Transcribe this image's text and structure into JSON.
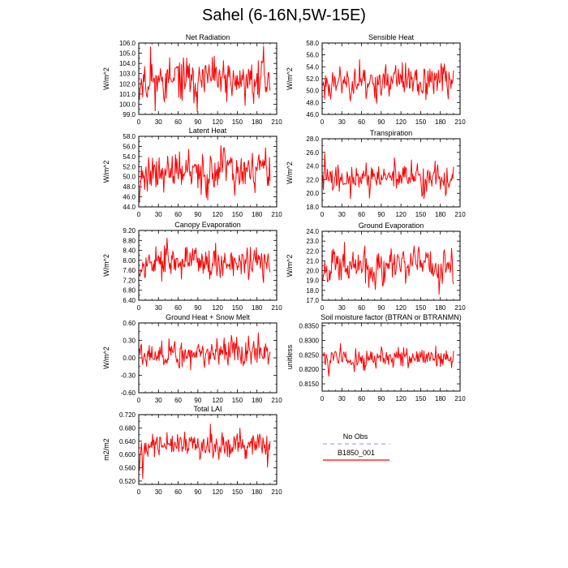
{
  "page": {
    "title": "Sahel (6-16N,5W-15E)"
  },
  "legend": [
    {
      "label": "No Obs",
      "color": "#a0a0ff",
      "dashed": true
    },
    {
      "label": "B1850_001",
      "color": "#ff0000",
      "dashed": false
    }
  ],
  "chart_data": [
    {
      "type": "line",
      "title": "Net Radiation",
      "ylabel": "W/m^2",
      "ylim": [
        99.0,
        106.0
      ],
      "yticks": [
        "99.0",
        "100.0",
        "101.0",
        "102.0",
        "103.0",
        "104.0",
        "105.0",
        "106.0"
      ],
      "xlim": [
        0,
        210
      ],
      "xticks": [
        "0",
        "30",
        "60",
        "90",
        "120",
        "150",
        "180",
        "210"
      ],
      "n": 200,
      "mean": 102.3,
      "amp": 1.4,
      "min": 99.3,
      "max": 105.7,
      "trend": 0.0,
      "seed": 11,
      "series": [
        {
          "name": "B1850_001",
          "color": "#ff0000"
        }
      ]
    },
    {
      "type": "line",
      "title": "Sensible Heat",
      "ylabel": "W/m^2",
      "ylim": [
        46.0,
        58.0
      ],
      "yticks": [
        "46.0",
        "48.0",
        "50.0",
        "52.0",
        "54.0",
        "56.0",
        "58.0"
      ],
      "xlim": [
        0,
        210
      ],
      "xticks": [
        "0",
        "30",
        "60",
        "90",
        "120",
        "150",
        "180",
        "210"
      ],
      "n": 200,
      "mean": 51.6,
      "amp": 2.0,
      "min": 46.3,
      "max": 56.5,
      "trend": 0.0,
      "seed": 23,
      "series": [
        {
          "name": "B1850_001",
          "color": "#ff0000"
        }
      ]
    },
    {
      "type": "line",
      "title": "Latent Heat",
      "ylabel": "W/m^2",
      "ylim": [
        44.0,
        58.0
      ],
      "yticks": [
        "44.0",
        "46.0",
        "48.0",
        "50.0",
        "52.0",
        "54.0",
        "56.0",
        "58.0"
      ],
      "xlim": [
        0,
        210
      ],
      "xticks": [
        "0",
        "30",
        "60",
        "90",
        "120",
        "150",
        "180",
        "210"
      ],
      "n": 200,
      "mean": 50.8,
      "amp": 2.8,
      "min": 44.8,
      "max": 57.9,
      "trend": 0.0,
      "seed": 37,
      "series": [
        {
          "name": "B1850_001",
          "color": "#ff0000"
        }
      ]
    },
    {
      "type": "line",
      "title": "Transpiration",
      "ylabel": "W/m^2",
      "ylim": [
        18.0,
        28.0
      ],
      "yticks": [
        "18.0",
        "20.0",
        "22.0",
        "24.0",
        "26.0",
        "28.0"
      ],
      "xlim": [
        0,
        210
      ],
      "xticks": [
        "0",
        "30",
        "60",
        "90",
        "120",
        "150",
        "180",
        "210"
      ],
      "n": 200,
      "mean": 22.2,
      "amp": 1.3,
      "min": 19.2,
      "max": 26.0,
      "trend": 0.0,
      "seed": 41,
      "series": [
        {
          "name": "B1850_001",
          "color": "#ff0000"
        }
      ]
    },
    {
      "type": "line",
      "title": "Canopy Evaporation",
      "ylabel": "W/m^2",
      "ylim": [
        6.4,
        9.2
      ],
      "yticks": [
        "6.40",
        "6.80",
        "7.20",
        "7.60",
        "8.00",
        "8.40",
        "8.80",
        "9.20"
      ],
      "xlim": [
        0,
        210
      ],
      "xticks": [
        "0",
        "30",
        "60",
        "90",
        "120",
        "150",
        "180",
        "210"
      ],
      "n": 200,
      "mean": 7.95,
      "amp": 0.45,
      "min": 6.7,
      "max": 9.0,
      "trend": 0.0,
      "seed": 53,
      "series": [
        {
          "name": "B1850_001",
          "color": "#ff0000"
        }
      ]
    },
    {
      "type": "line",
      "title": "Ground Evaporation",
      "ylabel": "W/m^2",
      "ylim": [
        17.0,
        24.0
      ],
      "yticks": [
        "17.0",
        "18.0",
        "19.0",
        "20.0",
        "21.0",
        "22.0",
        "23.0",
        "24.0"
      ],
      "xlim": [
        0,
        210
      ],
      "xticks": [
        "0",
        "30",
        "60",
        "90",
        "120",
        "150",
        "180",
        "210"
      ],
      "n": 200,
      "mean": 20.5,
      "amp": 1.2,
      "min": 17.6,
      "max": 23.8,
      "trend": 0.0,
      "seed": 67,
      "series": [
        {
          "name": "B1850_001",
          "color": "#ff0000"
        }
      ]
    },
    {
      "type": "line",
      "title": "Ground Heat + Snow Melt",
      "ylabel": "W/m^2",
      "ylim": [
        -0.6,
        0.6
      ],
      "yticks": [
        "-0.60",
        "-0.30",
        "0.00",
        "0.30",
        "0.60"
      ],
      "xlim": [
        0,
        210
      ],
      "xticks": [
        "0",
        "30",
        "60",
        "90",
        "120",
        "150",
        "180",
        "210"
      ],
      "n": 200,
      "mean": 0.08,
      "amp": 0.17,
      "min": -0.32,
      "max": 0.65,
      "trend": 0.0,
      "seed": 79,
      "series": [
        {
          "name": "B1850_001",
          "color": "#ff0000"
        }
      ]
    },
    {
      "type": "line",
      "title": "Soil moisture factor (BTRAN or BTRANMN)",
      "ylabel": "unitless",
      "ylim": [
        0.8125,
        0.836
      ],
      "yticks": [
        "0.8150",
        "0.8200",
        "0.8250",
        "0.8300",
        "0.8350"
      ],
      "xlim": [
        0,
        210
      ],
      "xticks": [
        "0",
        "30",
        "60",
        "90",
        "120",
        "150",
        "180",
        "210"
      ],
      "n": 200,
      "mean": 0.8238,
      "amp": 0.0025,
      "min": 0.8128,
      "max": 0.8305,
      "trend": 0.0,
      "seed": 83,
      "series": [
        {
          "name": "B1850_001",
          "color": "#ff0000"
        }
      ]
    },
    {
      "type": "line",
      "title": "Total LAI",
      "ylabel": "m2/m2",
      "ylim": [
        0.51,
        0.72
      ],
      "yticks": [
        "0.520",
        "0.560",
        "0.600",
        "0.640",
        "0.680",
        "0.720"
      ],
      "xlim": [
        0,
        210
      ],
      "xticks": [
        "0",
        "30",
        "60",
        "90",
        "120",
        "150",
        "180",
        "210"
      ],
      "n": 200,
      "mean": 0.625,
      "amp": 0.028,
      "min": 0.528,
      "max": 0.705,
      "trend": 0.0,
      "seed": 97,
      "series": [
        {
          "name": "B1850_001",
          "color": "#ff0000"
        }
      ]
    }
  ]
}
